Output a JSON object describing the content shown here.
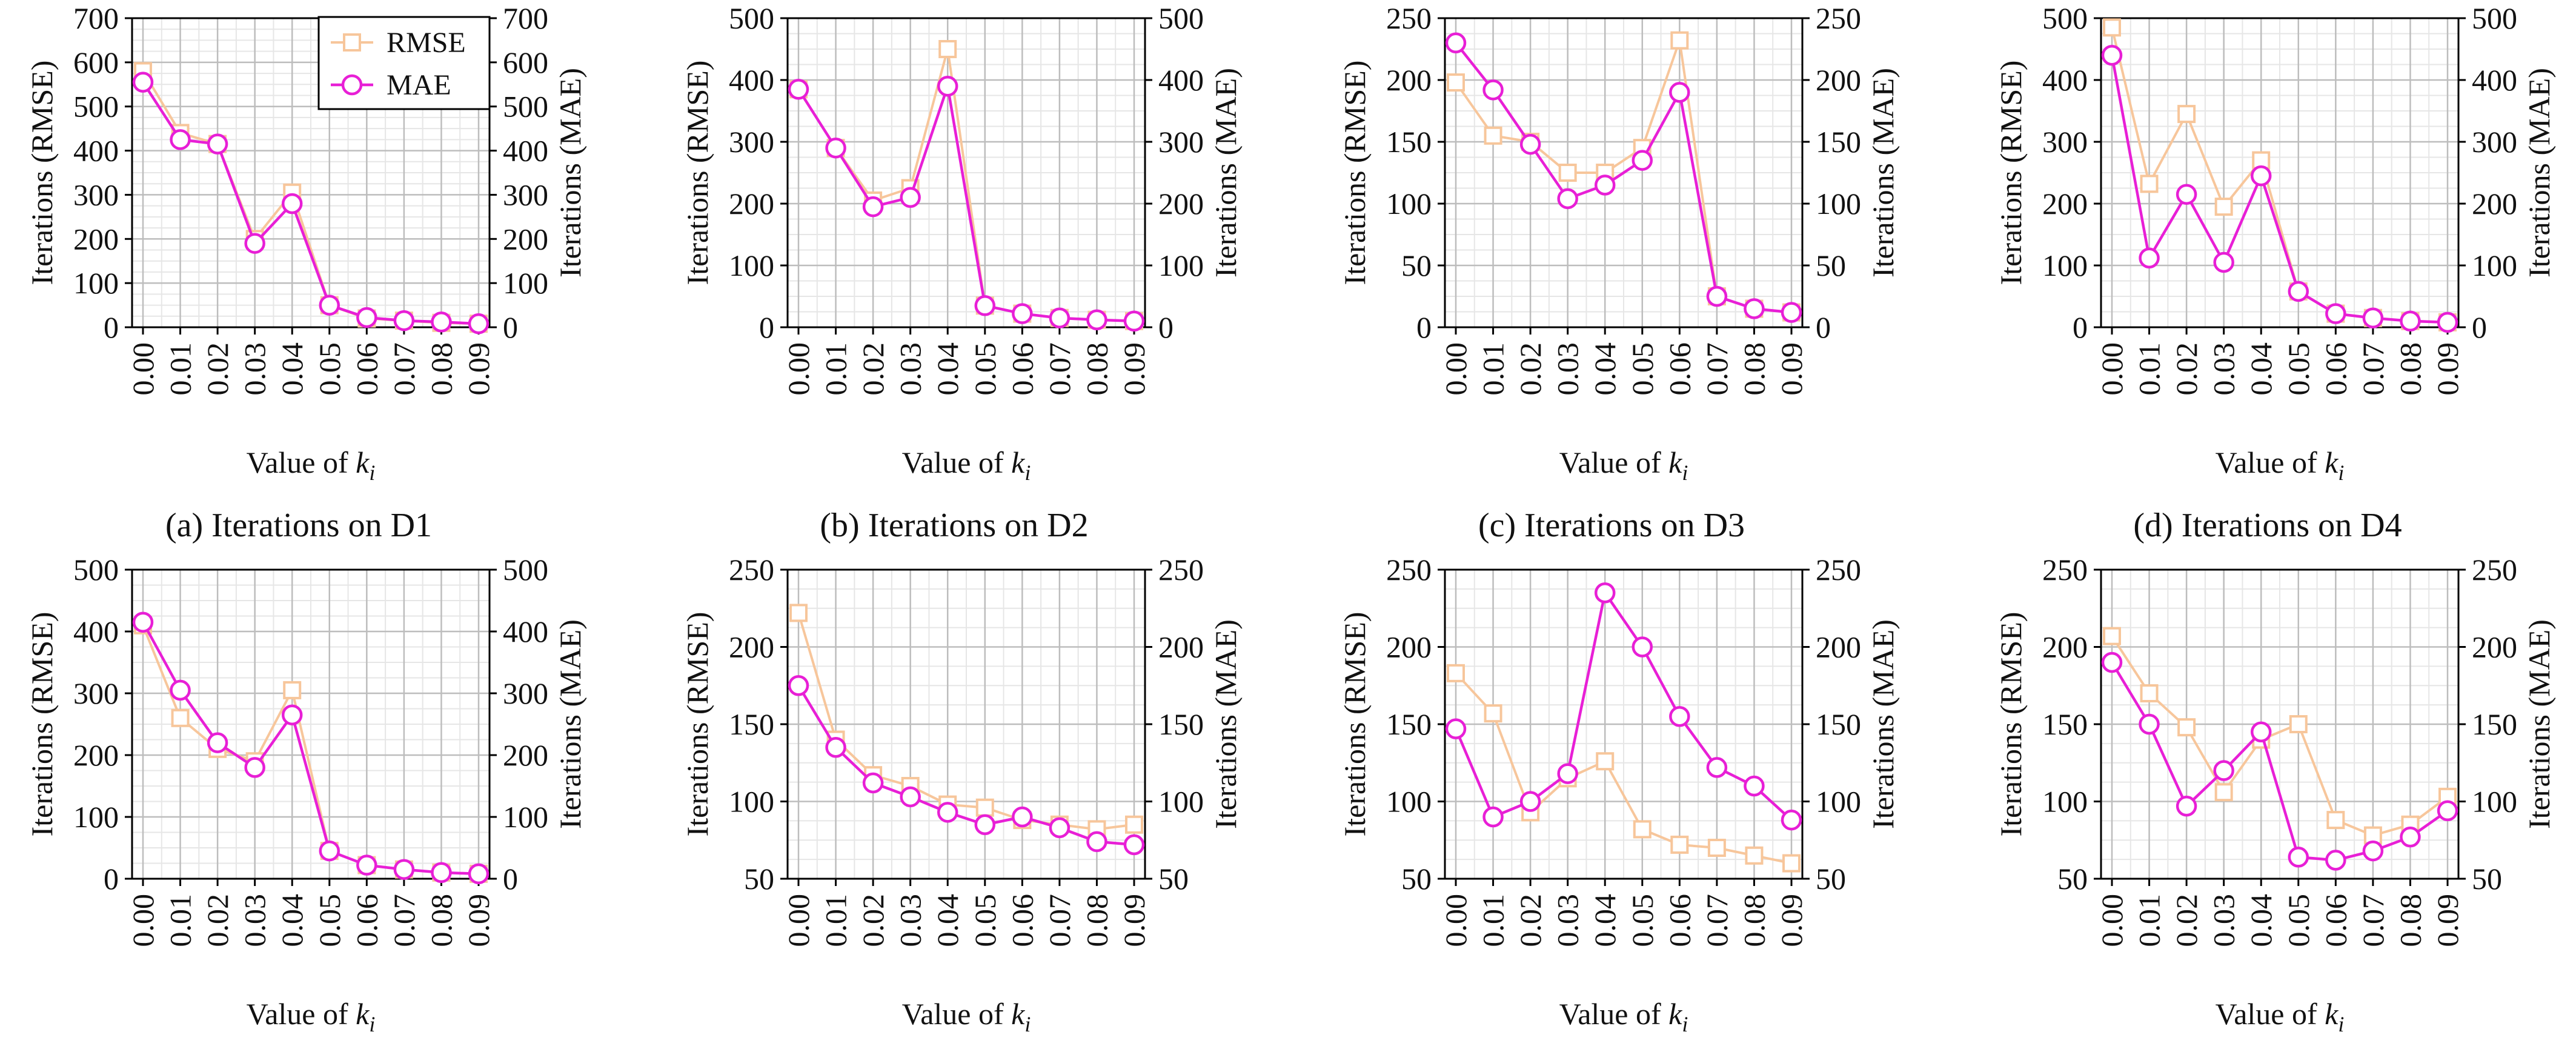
{
  "colors": {
    "rmse": "#f7c69b",
    "mae": "#e81fd6",
    "grid_major": "#bdbdbd",
    "grid_minor": "#e6e6e6",
    "axis": "#000000"
  },
  "legend": {
    "rmse": "RMSE",
    "mae": "MAE",
    "placement": "top-right",
    "shown_in": "a"
  },
  "chart_data": [
    {
      "type": "line",
      "id": "a",
      "caption": "(a) Iterations on D1",
      "xlabel": "Value of k_i",
      "ylabel_left": "Iterations (RMSE)",
      "ylabel_right": "Iterations (MAE)",
      "categories": [
        "0.00",
        "0.01",
        "0.02",
        "0.03",
        "0.04",
        "0.05",
        "0.06",
        "0.07",
        "0.08",
        "0.09"
      ],
      "ylim": [
        0,
        700
      ],
      "yticks": [
        0,
        100,
        200,
        300,
        400,
        500,
        600,
        700
      ],
      "grid": true,
      "series": [
        {
          "name": "RMSE",
          "values": [
            580,
            440,
            415,
            200,
            305,
            50,
            20,
            15,
            10,
            8
          ]
        },
        {
          "name": "MAE",
          "values": [
            555,
            425,
            415,
            190,
            280,
            50,
            22,
            15,
            12,
            8
          ]
        }
      ]
    },
    {
      "type": "line",
      "id": "b",
      "caption": "(b) Iterations on D2",
      "xlabel": "Value of k_i",
      "ylabel_left": "Iterations (RMSE)",
      "ylabel_right": "Iterations (MAE)",
      "categories": [
        "0.00",
        "0.01",
        "0.02",
        "0.03",
        "0.04",
        "0.05",
        "0.06",
        "0.07",
        "0.08",
        "0.09"
      ],
      "ylim": [
        0,
        500
      ],
      "yticks": [
        0,
        100,
        200,
        300,
        400,
        500
      ],
      "grid": true,
      "series": [
        {
          "name": "RMSE",
          "values": [
            385,
            290,
            205,
            225,
            450,
            35,
            22,
            15,
            12,
            10
          ]
        },
        {
          "name": "MAE",
          "values": [
            385,
            290,
            195,
            210,
            390,
            35,
            22,
            15,
            12,
            10
          ]
        }
      ]
    },
    {
      "type": "line",
      "id": "c",
      "caption": "(c) Iterations on D3",
      "xlabel": "Value of k_i",
      "ylabel_left": "Iterations (RMSE)",
      "ylabel_right": "Iterations (MAE)",
      "categories": [
        "0.00",
        "0.01",
        "0.02",
        "0.03",
        "0.04",
        "0.05",
        "0.06",
        "0.07",
        "0.08",
        "0.09"
      ],
      "ylim": [
        0,
        250
      ],
      "yticks": [
        0,
        50,
        100,
        150,
        200,
        250
      ],
      "grid": true,
      "series": [
        {
          "name": "RMSE",
          "values": [
            198,
            155,
            150,
            125,
            125,
            145,
            232,
            25,
            15,
            12
          ]
        },
        {
          "name": "MAE",
          "values": [
            230,
            192,
            148,
            104,
            115,
            135,
            190,
            25,
            15,
            12
          ]
        }
      ]
    },
    {
      "type": "line",
      "id": "d",
      "caption": "(d) Iterations on D4",
      "xlabel": "Value of k_i",
      "ylabel_left": "Iterations (RMSE)",
      "ylabel_right": "Iterations (MAE)",
      "categories": [
        "0.00",
        "0.01",
        "0.02",
        "0.03",
        "0.04",
        "0.05",
        "0.06",
        "0.07",
        "0.08",
        "0.09"
      ],
      "ylim": [
        0,
        500
      ],
      "yticks": [
        0,
        100,
        200,
        300,
        400,
        500
      ],
      "grid": true,
      "series": [
        {
          "name": "RMSE",
          "values": [
            485,
            232,
            345,
            195,
            270,
            58,
            22,
            15,
            10,
            8
          ]
        },
        {
          "name": "MAE",
          "values": [
            440,
            112,
            215,
            105,
            245,
            58,
            22,
            15,
            10,
            8
          ]
        }
      ]
    },
    {
      "type": "line",
      "id": "e",
      "caption": "(e) Iterations on D5",
      "xlabel": "Value of k_i",
      "ylabel_left": "Iterations (RMSE)",
      "ylabel_right": "Iterations (MAE)",
      "categories": [
        "0.00",
        "0.01",
        "0.02",
        "0.03",
        "0.04",
        "0.05",
        "0.06",
        "0.07",
        "0.08",
        "0.09"
      ],
      "ylim": [
        0,
        500
      ],
      "yticks": [
        0,
        100,
        200,
        300,
        400,
        500
      ],
      "grid": true,
      "series": [
        {
          "name": "RMSE",
          "values": [
            410,
            260,
            210,
            190,
            305,
            45,
            22,
            15,
            10,
            8
          ]
        },
        {
          "name": "MAE",
          "values": [
            415,
            305,
            220,
            180,
            265,
            45,
            22,
            15,
            10,
            8
          ]
        }
      ]
    },
    {
      "type": "line",
      "id": "f",
      "caption": "(f) Iterations on D6",
      "xlabel": "Value of k_i",
      "ylabel_left": "Iterations (RMSE)",
      "ylabel_right": "Iterations (MAE)",
      "categories": [
        "0.00",
        "0.01",
        "0.02",
        "0.03",
        "0.04",
        "0.05",
        "0.06",
        "0.07",
        "0.08",
        "0.09"
      ],
      "ylim": [
        50,
        250
      ],
      "yticks": [
        50,
        100,
        150,
        200,
        250
      ],
      "grid": true,
      "series": [
        {
          "name": "RMSE",
          "values": [
            222,
            140,
            117,
            110,
            98,
            96,
            88,
            85,
            82,
            85
          ]
        },
        {
          "name": "MAE",
          "values": [
            175,
            135,
            112,
            103,
            93,
            85,
            90,
            83,
            74,
            72
          ]
        }
      ]
    },
    {
      "type": "line",
      "id": "g",
      "caption": "(g) Iterations on D7",
      "xlabel": "Value of k_i",
      "ylabel_left": "Iterations (RMSE)",
      "ylabel_right": "Iterations (MAE)",
      "categories": [
        "0.00",
        "0.01",
        "0.02",
        "0.03",
        "0.04",
        "0.05",
        "0.06",
        "0.07",
        "0.08",
        "0.09"
      ],
      "ylim": [
        50,
        250
      ],
      "yticks": [
        50,
        100,
        150,
        200,
        250
      ],
      "grid": true,
      "series": [
        {
          "name": "RMSE",
          "values": [
            183,
            157,
            93,
            115,
            126,
            82,
            72,
            70,
            65,
            60
          ]
        },
        {
          "name": "MAE",
          "values": [
            147,
            90,
            100,
            118,
            235,
            200,
            155,
            122,
            110,
            88
          ]
        }
      ]
    },
    {
      "type": "line",
      "id": "h",
      "caption": "(h) Iterations on D8",
      "xlabel": "Value of k_i",
      "ylabel_left": "Iterations (RMSE)",
      "ylabel_right": "Iterations (MAE)",
      "categories": [
        "0.00",
        "0.01",
        "0.02",
        "0.03",
        "0.04",
        "0.05",
        "0.06",
        "0.07",
        "0.08",
        "0.09"
      ],
      "ylim": [
        50,
        250
      ],
      "yticks": [
        50,
        100,
        150,
        200,
        250
      ],
      "grid": true,
      "series": [
        {
          "name": "RMSE",
          "values": [
            207,
            170,
            148,
            106,
            140,
            150,
            88,
            78,
            85,
            103
          ]
        },
        {
          "name": "MAE",
          "values": [
            190,
            150,
            97,
            120,
            145,
            64,
            62,
            68,
            77,
            94
          ]
        }
      ]
    }
  ]
}
